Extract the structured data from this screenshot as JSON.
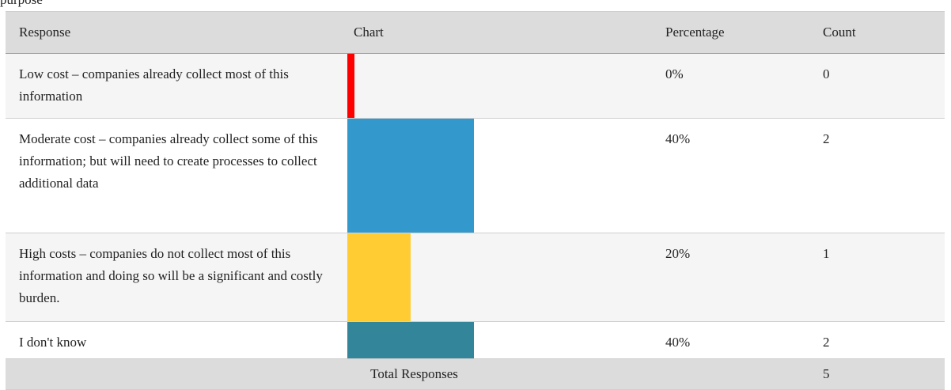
{
  "cropped_text": "purpose",
  "header": {
    "response": "Response",
    "chart": "Chart",
    "percentage": "Percentage",
    "count": "Count"
  },
  "colors": {
    "header_bg": "#dcdcdc",
    "row_alt_bg": "#f5f5f5",
    "series": [
      "#ff0000",
      "#3399cc",
      "#ffcc33",
      "#338599"
    ]
  },
  "chart_data": {
    "type": "table",
    "rows": [
      {
        "response": "Low cost – companies already collect most of this information",
        "percentage_value": 0,
        "percentage": "0%",
        "count": "0"
      },
      {
        "response": "Moderate cost – companies already collect some of this information; but will need to create processes to collect additional data",
        "percentage_value": 40,
        "percentage": "40%",
        "count": "2"
      },
      {
        "response": "High costs – companies do not collect most of this information and doing so will be a significant and costly burden.",
        "percentage_value": 20,
        "percentage": "20%",
        "count": "1"
      },
      {
        "response": "I don't know",
        "percentage_value": 40,
        "percentage": "40%",
        "count": "2"
      }
    ],
    "total_label": "Total Responses",
    "total_count": "5"
  }
}
